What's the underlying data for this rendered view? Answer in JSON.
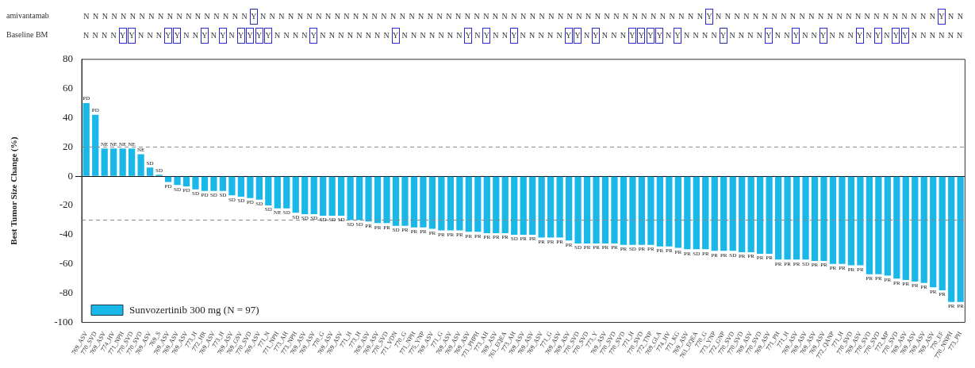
{
  "chart_data": [
    {
      "type": "other",
      "annotations": [
        "amivantamab",
        "N N N N N N N N N N N N N N N N N N Y N N N N N N N N N N N N N N N N N N N N N N N N N N N N N N N N N N N N N N N N N N N N N N N N Y N N N N N N N N N N N N N N N N N N N N N N N N Y N N",
        "Baseline BM",
        "N N N N Y Y N N N Y Y N N Y N Y N Y Y Y Y N N N N Y N N N N N N N N Y N N N N N N N Y N Y N N Y N N N N N Y Y N Y N N N Y Y Y Y N Y N N N N Y N N N N Y N N Y N N Y N N N Y N Y N Y Y N N N N N N"
      ]
    },
    {
      "type": "bar",
      "ylabel": "Best Tumor Size Change (%)",
      "categories": [
        "769_ASV",
        "770_SVD",
        "769_ASV",
        "774_HV",
        "771_NPH",
        "770_SVD",
        "770_SVD",
        "769_ASV",
        "769_S",
        "769_ASV",
        "769_ASV",
        "769_ASV",
        "773_H",
        "772_HR",
        "769_ASV",
        "773_H",
        "769_ASV",
        "769_GSV",
        "770_SVD",
        "769_ASV",
        "771_N",
        "771_NPH",
        "773_AH",
        "773_NPH",
        "769_ASV",
        "769_ASV",
        "770_G",
        "769_ASV",
        "769_ASV",
        "771_H",
        "773_H",
        "769_ASV",
        "769_ASV",
        "770_SVD",
        "771_VDN",
        "770_G",
        "771_NPH",
        "775_YNP",
        "769_ASV",
        "771_G",
        "769_ASV",
        "769_ASV",
        "769_ASV",
        "771_PHPH",
        "773_AH",
        "769_ASV",
        "761_EQEA",
        "773_AH",
        "769_ASV",
        "769_ASV",
        "769_ASV",
        "771_G",
        "769_ASV",
        "769_ASV",
        "770_SVD",
        "770_SVD",
        "773_Y",
        "769_ASV",
        "770_SVD",
        "770_SVD",
        "771_H",
        "770_SVD",
        "772_TNP",
        "769_GLA",
        "774_HV",
        "771_KG",
        "769_ASV",
        "761_EQEA",
        "770_G",
        "773_YNP",
        "772_GNP",
        "770_SVD",
        "770_SVD",
        "769_ASV",
        "770_SVD",
        "769_ASV",
        "771_PH",
        "771_H",
        "769_ASV",
        "769_ASV",
        "769_ASV",
        "769_ASV",
        "772_QANP",
        "771_H",
        "770_SVD",
        "769_ASV",
        "770_SVD",
        "770_SVD",
        "772_MP",
        "770_SVD",
        "769_ASV",
        "769_ASV",
        "769_ASV",
        "769_ASV",
        "770_EF",
        "770_NNPH",
        "773_PH"
      ],
      "series": [
        {
          "name": "Sunvozertinib 300 mg (N = 97)",
          "color": "#1ab8e8",
          "values": [
            50,
            42,
            19,
            19,
            19,
            19,
            15,
            6,
            1,
            -4,
            -6,
            -7,
            -9,
            -10,
            -10,
            -10,
            -13,
            -14,
            -15,
            -16,
            -20,
            -22,
            -22,
            -25,
            -26,
            -26,
            -27,
            -27,
            -27,
            -30,
            -30,
            -31,
            -32,
            -32,
            -34,
            -34,
            -35,
            -35,
            -36,
            -37,
            -37,
            -37,
            -38,
            -38,
            -39,
            -39,
            -39,
            -40,
            -40,
            -40,
            -42,
            -42,
            -42,
            -44,
            -46,
            -46,
            -46,
            -46,
            -46,
            -47,
            -47,
            -47,
            -47,
            -48,
            -48,
            -49,
            -50,
            -50,
            -50,
            -51,
            -51,
            -51,
            -52,
            -52,
            -53,
            -53,
            -57,
            -57,
            -57,
            -57,
            -58,
            -58,
            -60,
            -60,
            -61,
            -61,
            -67,
            -67,
            -68,
            -70,
            -71,
            -72,
            -73,
            -76,
            -78,
            -86,
            -86
          ],
          "value_labels": [
            "PD",
            "PD",
            "NE",
            "NE",
            "NE",
            "NE",
            "NE",
            "SD",
            "SD",
            "PD",
            "SD",
            "PD",
            "SD",
            "PD",
            "SD",
            "SD",
            "SD",
            "SD",
            "PD",
            "SD",
            "SD",
            "NE",
            "SD",
            "SD",
            "SD",
            "SD",
            "SD",
            "SD",
            "SD",
            "SD",
            "SD",
            "PR",
            "PR",
            "PR",
            "SD",
            "PR",
            "PR",
            "PR",
            "PR",
            "PR",
            "PR",
            "PR",
            "PR",
            "PR",
            "PR",
            "PR",
            "PR",
            "SD",
            "PR",
            "PR",
            "PR",
            "PR",
            "PR",
            "PR",
            "SD",
            "PR",
            "PR",
            "PR",
            "PR",
            "PR",
            "SD",
            "PR",
            "PR",
            "PR",
            "PR",
            "PR",
            "PR",
            "SD",
            "PR",
            "PR",
            "PR",
            "SD",
            "PR",
            "PR",
            "PR",
            "PR",
            "PR",
            "PR",
            "PR",
            "SD",
            "PR",
            "PR",
            "PR",
            "PR",
            "PR",
            "PR",
            "PR",
            "PR",
            "PR",
            "PR",
            "PR",
            "PR",
            "PR",
            "PR",
            "PR",
            "PR",
            "PR"
          ]
        }
      ],
      "ylim": [
        -100,
        80
      ],
      "yticks": [
        -100,
        -80,
        -60,
        -40,
        -20,
        0,
        20,
        40,
        60,
        80
      ],
      "ref_lines": [
        {
          "axis": "y",
          "value": 20,
          "line_style": "dashed",
          "color": "#888888"
        },
        {
          "axis": "y",
          "value": -30,
          "line_style": "dashed",
          "color": "#888888"
        }
      ],
      "legend": "bottom left"
    }
  ]
}
